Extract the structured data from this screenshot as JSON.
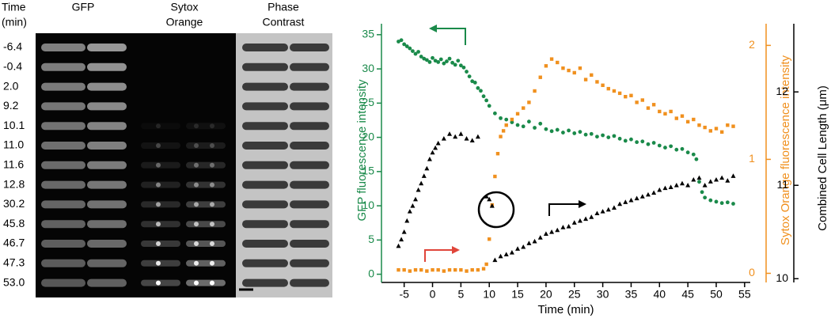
{
  "microscopy": {
    "time_header": [
      "Time",
      "(min)"
    ],
    "channels": [
      [
        "GFP"
      ],
      [
        "Sytox",
        "Orange"
      ],
      [
        "Phase",
        "Contrast"
      ]
    ],
    "times": [
      "-6.4",
      "-0.4",
      "2.0",
      "9.2",
      "10.1",
      "11.0",
      "11.6",
      "12.8",
      "30.2",
      "45.8",
      "46.7",
      "47.3",
      "53.0"
    ]
  },
  "chart_data": {
    "type": "scatter",
    "x_label": "Time (min)",
    "y_label": "GFP fluorescence intensity",
    "y2_label": "Sytox Orange fluorescence intensity",
    "y3_label": "Combined Cell Length (μm)",
    "xlim": [
      -9,
      56
    ],
    "xticks": [
      -5,
      0,
      5,
      10,
      15,
      20,
      25,
      30,
      35,
      40,
      45,
      50,
      55
    ],
    "ylim": [
      -1.2,
      36.6
    ],
    "yticks": [
      0,
      5,
      10,
      15,
      20,
      25,
      30,
      35
    ],
    "y2lim": [
      -0.08,
      2.19
    ],
    "y2ticks": [
      0,
      1,
      2
    ],
    "y3lim": [
      9.96,
      12.73
    ],
    "y3ticks": [
      10,
      11,
      12
    ],
    "series": [
      {
        "color": "#1a8a4a",
        "marker": "circle",
        "axis": "y",
        "x": [
          -6,
          -5.5,
          -5,
          -4.5,
          -4,
          -3.5,
          -3,
          -2.5,
          -2,
          -1.5,
          -1,
          -0.5,
          0,
          0.5,
          1,
          1.5,
          2,
          2.5,
          3,
          3.5,
          4,
          4.5,
          5,
          5.5,
          6,
          6.5,
          7,
          7.5,
          8,
          8.5,
          9,
          9.5,
          10,
          11,
          12,
          13,
          14,
          15,
          16,
          17,
          18,
          19,
          20,
          21,
          22,
          23,
          24,
          25,
          26,
          27,
          28,
          29,
          30,
          31,
          32,
          33,
          34,
          35,
          36,
          37,
          38,
          39,
          40,
          41,
          42,
          43,
          44,
          45,
          46,
          46.5,
          47,
          47.5,
          48,
          49,
          50,
          51,
          52,
          53
        ],
        "values": [
          34,
          34.2,
          33.6,
          33.3,
          33,
          32.6,
          32.2,
          32.5,
          31.8,
          31.5,
          31.3,
          31,
          31.6,
          31.2,
          31,
          31.4,
          30.8,
          31.1,
          31.5,
          30.9,
          30.6,
          31.2,
          30.5,
          30.2,
          29.6,
          28.9,
          28.2,
          28,
          27.2,
          26.8,
          26,
          25.4,
          24.6,
          23.5,
          22.8,
          22.6,
          22.2,
          21.8,
          21.6,
          22.3,
          21.4,
          22,
          21.2,
          20.9,
          21.1,
          20.7,
          21,
          20.6,
          20.8,
          20.4,
          20.5,
          20.1,
          20.3,
          20,
          20.2,
          19.8,
          19.5,
          19.7,
          19.3,
          19.4,
          19,
          19.2,
          18.8,
          18.5,
          18.7,
          18.2,
          18.3,
          17.8,
          17.5,
          16.8,
          13.5,
          12,
          11.2,
          10.8,
          10.6,
          10.4,
          10.5,
          10.3
        ]
      },
      {
        "color": "#f0901e",
        "marker": "square",
        "axis": "y2",
        "x": [
          -6,
          -5,
          -4,
          -3,
          -2,
          -1,
          0,
          1,
          2,
          3,
          4,
          5,
          6,
          7,
          8,
          9,
          9.5,
          10,
          10.5,
          11,
          11.5,
          12,
          12.5,
          13,
          14,
          15,
          16,
          17,
          18,
          19,
          20,
          21,
          22,
          23,
          24,
          25,
          26,
          27,
          28,
          29,
          30,
          31,
          32,
          33,
          34,
          35,
          36,
          37,
          38,
          39,
          40,
          41,
          42,
          43,
          44,
          45,
          46,
          47,
          48,
          49,
          50,
          51,
          52,
          53
        ],
        "values": [
          0.03,
          0.03,
          0.02,
          0.03,
          0.03,
          0.02,
          0.03,
          0.03,
          0.02,
          0.03,
          0.03,
          0.03,
          0.02,
          0.03,
          0.03,
          0.04,
          0.08,
          0.3,
          0.6,
          0.85,
          1.05,
          1.2,
          1.25,
          1.3,
          1.35,
          1.4,
          1.45,
          1.5,
          1.6,
          1.72,
          1.82,
          1.88,
          1.85,
          1.8,
          1.78,
          1.76,
          1.8,
          1.7,
          1.74,
          1.68,
          1.65,
          1.62,
          1.6,
          1.58,
          1.55,
          1.56,
          1.5,
          1.52,
          1.45,
          1.48,
          1.42,
          1.4,
          1.42,
          1.36,
          1.38,
          1.33,
          1.35,
          1.3,
          1.28,
          1.25,
          1.27,
          1.24,
          1.3,
          1.29
        ]
      },
      {
        "color": "#000000",
        "marker": "triangle",
        "axis": "y3",
        "x": [
          -6,
          -5.5,
          -5,
          -4.5,
          -4,
          -3.5,
          -3,
          -2.5,
          -2,
          -1.5,
          -1,
          -0.5,
          0,
          0.5,
          1,
          2,
          3,
          4,
          5,
          6,
          7,
          8,
          9.5,
          10,
          10.5,
          11,
          12,
          13,
          14,
          15,
          16,
          17,
          18,
          19,
          20,
          21,
          22,
          23,
          24,
          25,
          26,
          27,
          28,
          29,
          30,
          31,
          32,
          33,
          34,
          35,
          36,
          37,
          38,
          39,
          40,
          41,
          42,
          43,
          44,
          45,
          46,
          47,
          48,
          49,
          50,
          51,
          52,
          53
        ],
        "values": [
          10.35,
          10.42,
          10.5,
          10.62,
          10.72,
          10.78,
          10.85,
          10.95,
          11.02,
          11.1,
          11.18,
          11.28,
          11.35,
          11.4,
          11.45,
          11.5,
          11.55,
          11.52,
          11.55,
          11.5,
          11.48,
          11.52,
          10.88,
          10.85,
          10.78,
          10.2,
          10.24,
          10.26,
          10.28,
          10.32,
          10.34,
          10.38,
          10.4,
          10.44,
          10.48,
          10.5,
          10.52,
          10.55,
          10.56,
          10.6,
          10.62,
          10.64,
          10.66,
          10.7,
          10.72,
          10.74,
          10.76,
          10.8,
          10.82,
          10.84,
          10.86,
          10.88,
          10.9,
          10.92,
          10.95,
          10.97,
          10.98,
          11.0,
          11.02,
          11.0,
          11.06,
          11.08,
          11.0,
          11.04,
          11.06,
          11.08,
          11.05,
          11.1
        ]
      }
    ]
  }
}
